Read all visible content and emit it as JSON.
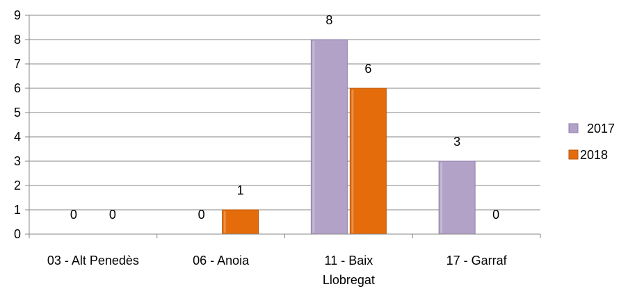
{
  "chart_data": {
    "type": "bar",
    "categories": [
      "03 - Alt Penedès",
      "06 - Anoia",
      "11 - Baix Llobregat",
      "17 - Garraf"
    ],
    "category_label_lines": [
      [
        "03 - Alt Penedès"
      ],
      [
        "06 - Anoia"
      ],
      [
        "11 - Baix",
        "Llobregat"
      ],
      [
        "17 - Garraf"
      ]
    ],
    "series": [
      {
        "name": "2017",
        "values": [
          0,
          0,
          8,
          3
        ],
        "color": "#b3a2c7",
        "edge": "#8e7cab"
      },
      {
        "name": "2018",
        "values": [
          0,
          1,
          6,
          0
        ],
        "color": "#e46c0a",
        "edge": "#b8560a"
      }
    ],
    "ylim": [
      0,
      9
    ],
    "yticks": [
      "0",
      "1",
      "2",
      "3",
      "4",
      "5",
      "6",
      "7",
      "8",
      "9"
    ],
    "title": "",
    "xlabel": "",
    "ylabel": "",
    "grid": true,
    "legend_position": "right",
    "data_labels": true
  }
}
